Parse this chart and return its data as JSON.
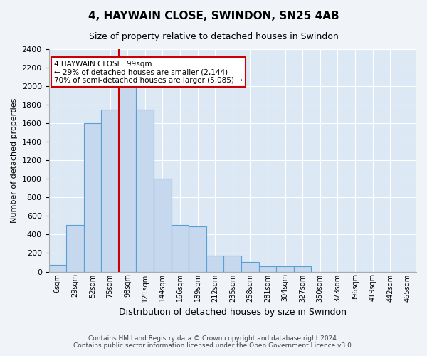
{
  "title": "4, HAYWAIN CLOSE, SWINDON, SN25 4AB",
  "subtitle": "Size of property relative to detached houses in Swindon",
  "xlabel": "Distribution of detached houses by size in Swindon",
  "ylabel": "Number of detached properties",
  "footer_line1": "Contains HM Land Registry data © Crown copyright and database right 2024.",
  "footer_line2": "Contains public sector information licensed under the Open Government Licence v3.0.",
  "annotation_line1": "4 HAYWAIN CLOSE: 99sqm",
  "annotation_line2": "← 29% of detached houses are smaller (2,144)",
  "annotation_line3": "70% of semi-detached houses are larger (5,085) →",
  "bar_color": "#c5d8ed",
  "bar_edge_color": "#5a9fd4",
  "marker_line_color": "#cc0000",
  "annotation_box_color": "#cc0000",
  "background_color": "#f0f4f8",
  "plot_background_color": "#dce8f4",
  "categories": [
    "6sqm",
    "29sqm",
    "52sqm",
    "75sqm",
    "98sqm",
    "121sqm",
    "144sqm",
    "166sqm",
    "189sqm",
    "212sqm",
    "235sqm",
    "258sqm",
    "281sqm",
    "304sqm",
    "327sqm",
    "350sqm",
    "373sqm",
    "396sqm",
    "419sqm",
    "442sqm",
    "465sqm"
  ],
  "values": [
    75,
    500,
    1600,
    1750,
    2300,
    1750,
    1000,
    500,
    490,
    175,
    175,
    100,
    55,
    55,
    55,
    0,
    0,
    0,
    0,
    0,
    0
  ],
  "ylim": [
    0,
    2400
  ],
  "yticks": [
    0,
    200,
    400,
    600,
    800,
    1000,
    1200,
    1400,
    1600,
    1800,
    2000,
    2200,
    2400
  ],
  "marker_bar_index": 4,
  "figsize": [
    6.0,
    5.0
  ],
  "dpi": 100
}
